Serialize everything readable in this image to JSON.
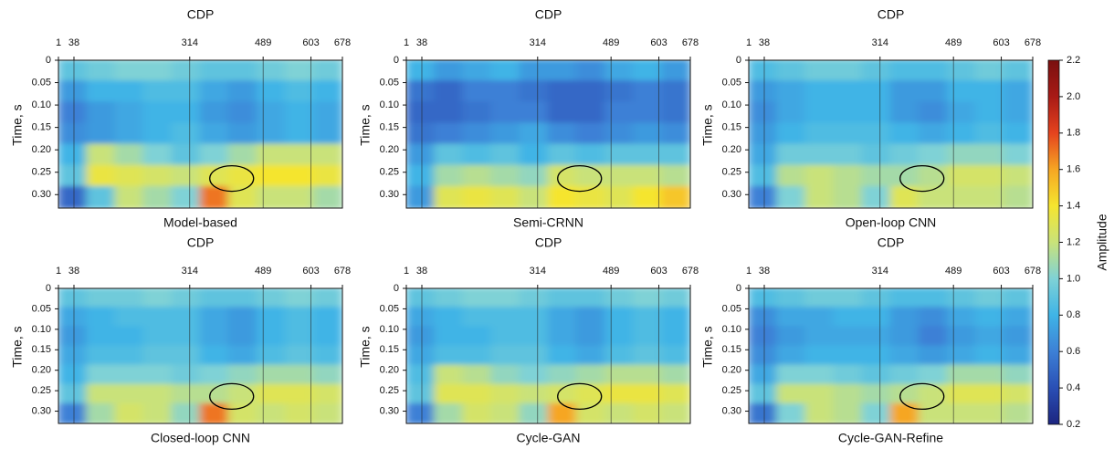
{
  "chart_data": [
    {
      "type": "heatmap",
      "title": "Model-based",
      "xlabel": "CDP",
      "ylabel": "Time, s",
      "xlim": [
        1,
        678
      ],
      "xticks": [
        1,
        38,
        314,
        489,
        603,
        678
      ],
      "ylim": [
        0,
        0.33
      ],
      "yticks": [
        0,
        0.05,
        {
          "value": 0.1,
          "label": "0.10"
        },
        0.15,
        {
          "value": 0.2,
          "label": "0.20"
        },
        0.25,
        {
          "value": 0.3,
          "label": "0.30"
        }
      ],
      "z": [
        [
          0.9,
          0.95,
          1.0,
          1.0,
          0.95,
          0.9,
          0.9,
          0.95,
          1.0,
          0.95
        ],
        [
          0.7,
          0.8,
          0.8,
          0.85,
          0.85,
          0.75,
          0.7,
          0.8,
          0.85,
          0.8
        ],
        [
          0.6,
          0.7,
          0.75,
          0.8,
          0.8,
          0.7,
          0.65,
          0.75,
          0.8,
          0.75
        ],
        [
          0.65,
          0.7,
          0.75,
          0.8,
          0.85,
          0.75,
          0.7,
          0.75,
          0.8,
          0.75
        ],
        [
          0.8,
          1.2,
          1.1,
          1.0,
          0.9,
          1.0,
          1.1,
          1.2,
          1.2,
          1.2
        ],
        [
          0.9,
          1.35,
          1.3,
          1.25,
          1.2,
          1.3,
          1.35,
          1.4,
          1.4,
          1.35
        ],
        [
          0.5,
          0.9,
          1.2,
          1.1,
          1.0,
          1.7,
          1.3,
          1.2,
          1.2,
          1.1
        ]
      ]
    },
    {
      "type": "heatmap",
      "title": "Semi-CRNN",
      "xlabel": "CDP",
      "ylabel": "Time, s",
      "xlim": [
        1,
        678
      ],
      "xticks": [
        1,
        38,
        314,
        489,
        603,
        678
      ],
      "ylim": [
        0,
        0.33
      ],
      "yticks": [
        0,
        0.05,
        {
          "value": 0.1,
          "label": "0.10"
        },
        0.15,
        {
          "value": 0.2,
          "label": "0.20"
        },
        0.25,
        {
          "value": 0.3,
          "label": "0.30"
        }
      ],
      "z": [
        [
          0.8,
          0.7,
          0.75,
          0.8,
          0.7,
          0.7,
          0.65,
          0.75,
          0.8,
          0.7
        ],
        [
          0.55,
          0.5,
          0.6,
          0.6,
          0.55,
          0.5,
          0.5,
          0.55,
          0.6,
          0.55
        ],
        [
          0.5,
          0.5,
          0.55,
          0.6,
          0.6,
          0.5,
          0.5,
          0.6,
          0.6,
          0.55
        ],
        [
          0.55,
          0.6,
          0.65,
          0.7,
          0.75,
          0.65,
          0.6,
          0.65,
          0.7,
          0.65
        ],
        [
          0.7,
          0.9,
          0.85,
          0.9,
          0.8,
          0.9,
          0.85,
          0.9,
          0.9,
          0.9
        ],
        [
          0.8,
          1.1,
          1.15,
          1.1,
          1.05,
          1.25,
          1.2,
          1.2,
          1.2,
          1.15
        ],
        [
          0.7,
          1.3,
          1.35,
          1.3,
          1.2,
          1.4,
          1.35,
          1.3,
          1.4,
          1.5
        ]
      ]
    },
    {
      "type": "heatmap",
      "title": "Open-loop CNN",
      "xlabel": "CDP",
      "ylabel": "Time, s",
      "xlim": [
        1,
        678
      ],
      "xticks": [
        1,
        38,
        314,
        489,
        603,
        678
      ],
      "ylim": [
        0,
        0.33
      ],
      "yticks": [
        0,
        0.05,
        {
          "value": 0.1,
          "label": "0.10"
        },
        0.15,
        {
          "value": 0.2,
          "label": "0.20"
        },
        0.25,
        {
          "value": 0.3,
          "label": "0.30"
        }
      ],
      "z": [
        [
          0.85,
          0.9,
          0.95,
          0.95,
          0.9,
          0.85,
          0.85,
          0.9,
          0.95,
          0.9
        ],
        [
          0.7,
          0.75,
          0.8,
          0.8,
          0.8,
          0.7,
          0.7,
          0.8,
          0.8,
          0.75
        ],
        [
          0.65,
          0.75,
          0.8,
          0.8,
          0.8,
          0.7,
          0.65,
          0.75,
          0.8,
          0.75
        ],
        [
          0.7,
          0.8,
          0.85,
          0.85,
          0.85,
          0.8,
          0.75,
          0.8,
          0.85,
          0.8
        ],
        [
          0.75,
          0.95,
          0.95,
          0.95,
          0.9,
          0.95,
          1.0,
          1.05,
          1.05,
          1.0
        ],
        [
          0.85,
          1.15,
          1.2,
          1.15,
          1.1,
          1.1,
          1.15,
          1.25,
          1.25,
          1.2
        ],
        [
          0.6,
          1.0,
          1.2,
          1.15,
          1.0,
          1.3,
          1.2,
          1.2,
          1.2,
          1.15
        ]
      ]
    },
    {
      "type": "heatmap",
      "title": "Closed-loop CNN",
      "xlabel": "CDP",
      "ylabel": "Time, s",
      "xlim": [
        1,
        678
      ],
      "xticks": [
        1,
        38,
        314,
        489,
        603,
        678
      ],
      "ylim": [
        0,
        0.33
      ],
      "yticks": [
        0,
        0.05,
        {
          "value": 0.1,
          "label": "0.10"
        },
        0.15,
        {
          "value": 0.2,
          "label": "0.20"
        },
        0.25,
        {
          "value": 0.3,
          "label": "0.30"
        }
      ],
      "z": [
        [
          0.9,
          0.95,
          0.95,
          1.0,
          0.95,
          0.9,
          0.9,
          0.95,
          1.0,
          0.95
        ],
        [
          0.75,
          0.8,
          0.85,
          0.85,
          0.85,
          0.75,
          0.7,
          0.8,
          0.85,
          0.8
        ],
        [
          0.7,
          0.8,
          0.8,
          0.85,
          0.85,
          0.75,
          0.7,
          0.8,
          0.85,
          0.8
        ],
        [
          0.75,
          0.85,
          0.85,
          0.9,
          0.9,
          0.8,
          0.75,
          0.85,
          0.9,
          0.85
        ],
        [
          0.8,
          1.0,
          1.0,
          1.0,
          0.95,
          1.0,
          1.05,
          1.1,
          1.1,
          1.05
        ],
        [
          0.9,
          1.2,
          1.2,
          1.2,
          1.15,
          1.15,
          1.2,
          1.3,
          1.3,
          1.25
        ],
        [
          0.6,
          1.1,
          1.25,
          1.2,
          1.05,
          1.7,
          1.25,
          1.2,
          1.25,
          1.2
        ]
      ]
    },
    {
      "type": "heatmap",
      "title": "Cycle-GAN",
      "xlabel": "CDP",
      "ylabel": "Time, s",
      "xlim": [
        1,
        678
      ],
      "xticks": [
        1,
        38,
        314,
        489,
        603,
        678
      ],
      "ylim": [
        0,
        0.33
      ],
      "yticks": [
        0,
        0.05,
        {
          "value": 0.1,
          "label": "0.10"
        },
        0.15,
        {
          "value": 0.2,
          "label": "0.20"
        },
        0.25,
        {
          "value": 0.3,
          "label": "0.30"
        }
      ],
      "z": [
        [
          0.9,
          0.95,
          1.0,
          1.0,
          0.95,
          0.9,
          0.9,
          0.95,
          1.0,
          0.95
        ],
        [
          0.75,
          0.8,
          0.85,
          0.85,
          0.85,
          0.75,
          0.7,
          0.8,
          0.85,
          0.8
        ],
        [
          0.7,
          0.8,
          0.8,
          0.85,
          0.85,
          0.75,
          0.7,
          0.8,
          0.85,
          0.8
        ],
        [
          0.75,
          0.85,
          0.85,
          0.9,
          0.9,
          0.8,
          0.75,
          0.85,
          0.9,
          0.85
        ],
        [
          0.85,
          1.2,
          1.15,
          1.05,
          1.0,
          1.05,
          1.1,
          1.15,
          1.15,
          1.1
        ],
        [
          0.9,
          1.3,
          1.3,
          1.25,
          1.2,
          1.25,
          1.3,
          1.35,
          1.35,
          1.3
        ],
        [
          0.6,
          1.1,
          1.25,
          1.2,
          1.05,
          1.6,
          1.25,
          1.2,
          1.25,
          1.2
        ]
      ]
    },
    {
      "type": "heatmap",
      "title": "Cycle-GAN-Refine",
      "xlabel": "CDP",
      "ylabel": "Time, s",
      "xlim": [
        1,
        678
      ],
      "xticks": [
        1,
        38,
        314,
        489,
        603,
        678
      ],
      "ylim": [
        0,
        0.33
      ],
      "yticks": [
        0,
        0.05,
        {
          "value": 0.1,
          "label": "0.10"
        },
        0.15,
        {
          "value": 0.2,
          "label": "0.20"
        },
        0.25,
        {
          "value": 0.3,
          "label": "0.30"
        }
      ],
      "z": [
        [
          0.85,
          0.9,
          0.95,
          0.95,
          0.9,
          0.85,
          0.85,
          0.9,
          0.95,
          0.9
        ],
        [
          0.65,
          0.75,
          0.75,
          0.8,
          0.8,
          0.7,
          0.65,
          0.75,
          0.8,
          0.75
        ],
        [
          0.6,
          0.7,
          0.75,
          0.75,
          0.75,
          0.7,
          0.6,
          0.7,
          0.75,
          0.7
        ],
        [
          0.65,
          0.75,
          0.8,
          0.8,
          0.8,
          0.75,
          0.7,
          0.75,
          0.8,
          0.75
        ],
        [
          0.75,
          1.0,
          1.0,
          0.95,
          0.9,
          0.95,
          1.0,
          1.1,
          1.1,
          1.05
        ],
        [
          0.9,
          1.2,
          1.2,
          1.15,
          1.1,
          1.15,
          1.2,
          1.3,
          1.3,
          1.25
        ],
        [
          0.55,
          1.0,
          1.2,
          1.15,
          1.0,
          1.6,
          1.2,
          1.2,
          1.2,
          1.15
        ]
      ]
    },
    {
      "type": "colorbar",
      "label": "Amplitude",
      "lim": [
        0.2,
        2.2
      ],
      "ticks": [
        0.2,
        0.4,
        0.6,
        0.8,
        {
          "value": 1,
          "label": "1.0"
        },
        1.2,
        1.4,
        1.6,
        1.8,
        {
          "value": 2,
          "label": "2.0"
        },
        2.2
      ],
      "colormap": [
        "#1c2580",
        "#2a4fb5",
        "#3d80d6",
        "#3fb4e6",
        "#7fd2d6",
        "#c9e27a",
        "#f5e52f",
        "#f6a623",
        "#e5431e",
        "#a81a16",
        "#7a1010"
      ]
    }
  ]
}
